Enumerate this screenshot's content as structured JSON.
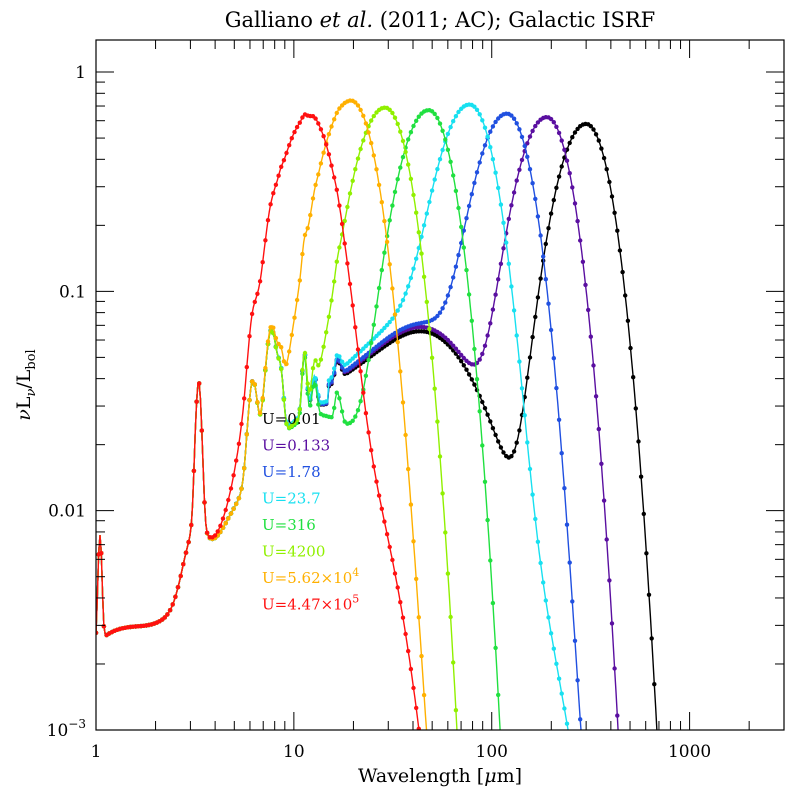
{
  "chart_data": {
    "type": "line",
    "title": {
      "pre": "Galliano ",
      "italic": "et al.",
      "post": " (2011; AC); Galactic ISRF"
    },
    "xlabel": {
      "pre": "Wavelength [",
      "mu": "μ",
      "post": "m]"
    },
    "ylabel": {
      "nu": "ν",
      "L": "L",
      "nu_sub": "ν",
      "slash": "/L",
      "bol_sub": "bol"
    },
    "x_scale": "log",
    "y_scale": "log",
    "xlim": [
      1,
      3000
    ],
    "ylim": [
      0.001,
      1.4
    ],
    "x_ticks": [
      {
        "value": 1,
        "label": "1"
      },
      {
        "value": 10,
        "label": "10"
      },
      {
        "value": 100,
        "label": "100"
      },
      {
        "value": 1000,
        "label": "1000"
      }
    ],
    "y_ticks": [
      {
        "value": 0.001,
        "base": "10",
        "exp": "−3"
      },
      {
        "value": 0.01,
        "label": "0.01"
      },
      {
        "value": 0.1,
        "label": "0.1"
      },
      {
        "value": 1,
        "label": "1"
      }
    ],
    "legend_placement": "lower-center-left",
    "series": [
      {
        "name": "U=0.01",
        "legend": {
          "base": "U=0.01"
        },
        "color": "#000000",
        "peak_wl": 300,
        "peak_val": 0.58,
        "trough": 0.065
      },
      {
        "name": "U=0.133",
        "legend": {
          "base": "U=0.133"
        },
        "color": "#5a0fa0",
        "peak_wl": 190,
        "peak_val": 0.62,
        "trough": 0.068
      },
      {
        "name": "U=1.78",
        "legend": {
          "base": "U=1.78"
        },
        "color": "#2050e0",
        "peak_wl": 120,
        "peak_val": 0.63,
        "trough": 0.07
      },
      {
        "name": "U=23.7",
        "legend": {
          "base": "U=23.7"
        },
        "color": "#18e0f0",
        "peak_wl": 78,
        "peak_val": 0.66,
        "trough": 0.08
      },
      {
        "name": "U=316",
        "legend": {
          "base": "U=316"
        },
        "color": "#20e040",
        "peak_wl": 48,
        "peak_val": 0.67,
        "trough": 0
      },
      {
        "name": "U=4200",
        "legend": {
          "base": "U=4200"
        },
        "color": "#90f000",
        "peak_wl": 29,
        "peak_val": 0.68,
        "trough": 0
      },
      {
        "name": "U=5.62×10^4",
        "legend": {
          "base": "U=5.62×10",
          "exp": "4"
        },
        "color": "#ffb000",
        "peak_wl": 19.5,
        "peak_val": 0.72,
        "trough": 0
      },
      {
        "name": "U=4.47×10^5",
        "legend": {
          "base": "U=4.47×10",
          "exp": "5"
        },
        "color": "#ff1010",
        "peak_wl": 12,
        "peak_val": 0.6,
        "trough": 0
      }
    ]
  }
}
